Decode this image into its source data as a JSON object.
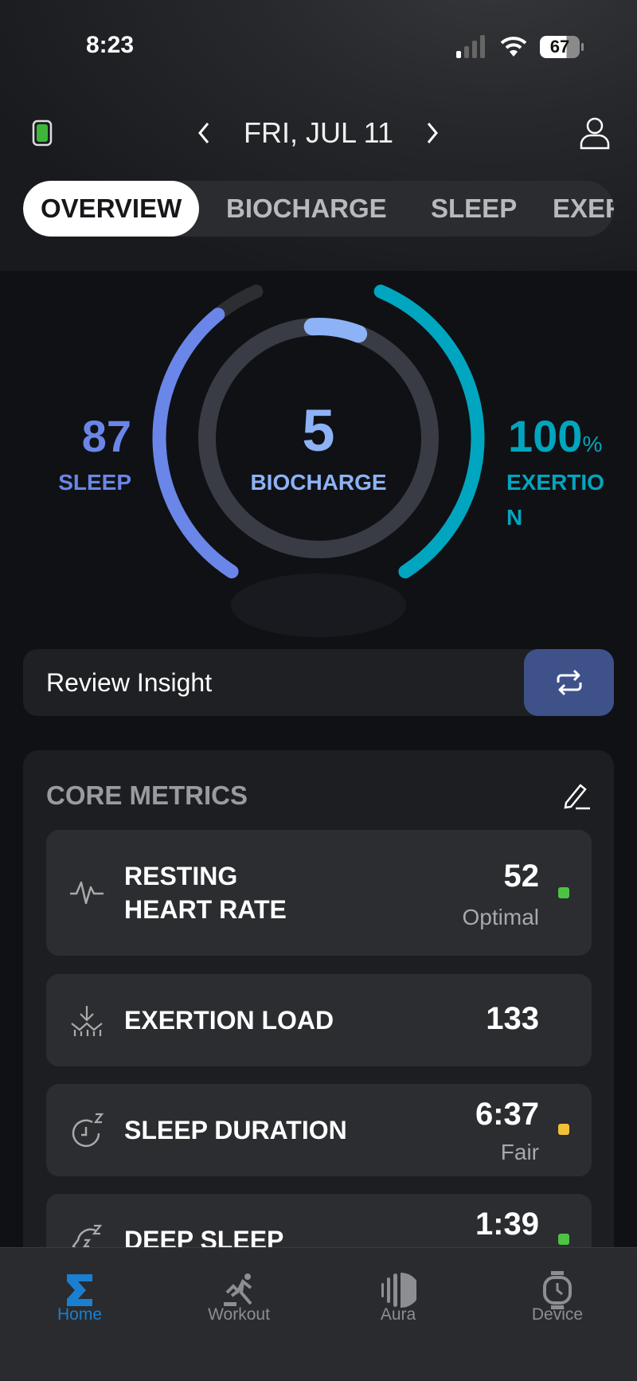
{
  "status": {
    "time": "8:23",
    "battery": "67"
  },
  "header": {
    "date": "FRI, JUL 11"
  },
  "tabs": [
    "OVERVIEW",
    "BIOCHARGE",
    "SLEEP",
    "EXERTION"
  ],
  "gauge": {
    "sleep": {
      "value": "87",
      "label": "SLEEP",
      "fraction": 0.87,
      "color": "#6a86e8"
    },
    "biocharge": {
      "value": "5",
      "label": "BIOCHARGE",
      "fraction": 0.05,
      "color": "#8db2f5"
    },
    "exertion": {
      "value": "100",
      "unit": "%",
      "label1": "EXERTIO",
      "label2": "N",
      "fraction": 1.0,
      "color": "#00a6bf"
    }
  },
  "insight": {
    "label": "Review Insight"
  },
  "core": {
    "title": "CORE METRICS",
    "rows": [
      {
        "name1": "RESTING",
        "name2": "HEART RATE",
        "value": "52",
        "status": "Optimal",
        "dot": "#4cc443",
        "icon": "heart-rate-icon"
      },
      {
        "name1": "EXERTION LOAD",
        "name2": "",
        "value": "133",
        "status": "",
        "dot": "",
        "icon": "exertion-load-icon"
      },
      {
        "name1": "SLEEP DURATION",
        "name2": "",
        "value": "6:37",
        "status": "Fair",
        "dot": "#f2c037",
        "icon": "sleep-duration-icon"
      },
      {
        "name1": "DEEP SLEEP",
        "name2": "",
        "value": "1:39",
        "status": "",
        "dot": "#4cc443",
        "icon": "deep-sleep-icon"
      }
    ]
  },
  "nav": [
    {
      "label": "Home",
      "active": true
    },
    {
      "label": "Workout"
    },
    {
      "label": "Aura"
    },
    {
      "label": "Device"
    }
  ],
  "colors": {
    "accent": "#1a7fd0",
    "insight_button": "#3e5289"
  }
}
